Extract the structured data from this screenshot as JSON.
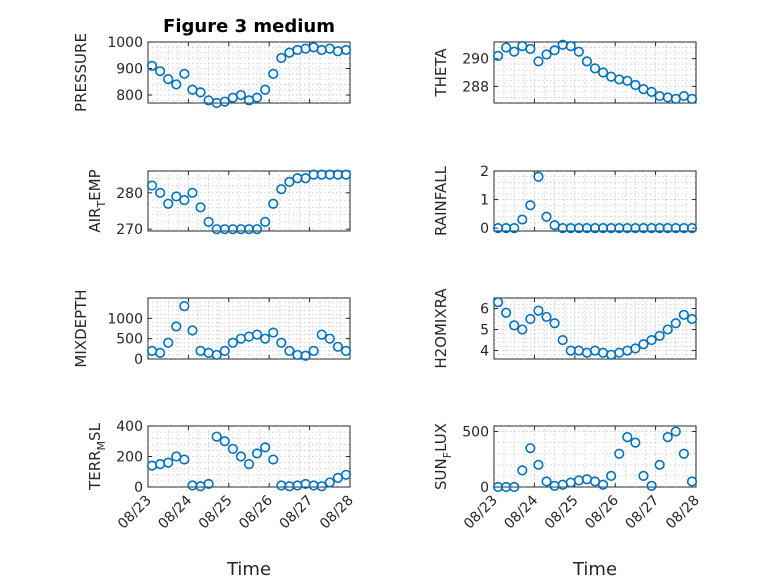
{
  "figure_title": "Figure 3 medium",
  "marker_color": "#0072BD",
  "x_label": "Time",
  "x_tick_labels": [
    "08/23",
    "08/24",
    "08/25",
    "08/26",
    "08/27",
    "08/28"
  ],
  "chart_data": [
    {
      "type": "scatter",
      "id": "pressure",
      "ylabel": "PRESSURE",
      "ylim": [
        770,
        1000
      ],
      "yticks": [
        800,
        900,
        1000
      ],
      "grid": true,
      "x_unit": "days since 08/23",
      "xlim": [
        0,
        5
      ],
      "x": [
        0.1,
        0.3,
        0.5,
        0.7,
        0.9,
        1.1,
        1.3,
        1.5,
        1.7,
        1.9,
        2.1,
        2.3,
        2.5,
        2.7,
        2.9,
        3.1,
        3.3,
        3.5,
        3.7,
        3.9,
        4.1,
        4.3,
        4.5,
        4.7,
        4.9
      ],
      "y": [
        910,
        890,
        860,
        840,
        880,
        820,
        810,
        780,
        770,
        775,
        790,
        800,
        780,
        790,
        820,
        880,
        940,
        960,
        970,
        975,
        980,
        970,
        975,
        965,
        970
      ]
    },
    {
      "type": "scatter",
      "id": "theta",
      "ylabel": "THETA",
      "ylim": [
        286.8,
        291.2
      ],
      "yticks": [
        288,
        290
      ],
      "grid": true,
      "x_unit": "days since 08/23",
      "xlim": [
        0,
        5
      ],
      "x": [
        0.1,
        0.3,
        0.5,
        0.7,
        0.9,
        1.1,
        1.3,
        1.5,
        1.7,
        1.9,
        2.1,
        2.3,
        2.5,
        2.7,
        2.9,
        3.1,
        3.3,
        3.5,
        3.7,
        3.9,
        4.1,
        4.3,
        4.5,
        4.7,
        4.9
      ],
      "y": [
        290.2,
        290.8,
        290.5,
        290.9,
        290.7,
        289.8,
        290.3,
        290.6,
        291.0,
        290.9,
        290.5,
        289.8,
        289.3,
        289.0,
        288.7,
        288.5,
        288.4,
        288.1,
        287.8,
        287.6,
        287.3,
        287.2,
        287.1,
        287.3,
        287.1
      ]
    },
    {
      "type": "scatter",
      "id": "air_temp",
      "ylabel": "AIR_TEMP",
      "ylim": [
        269.5,
        286
      ],
      "yticks": [
        270,
        280
      ],
      "grid": true,
      "x_unit": "days since 08/23",
      "xlim": [
        0,
        5
      ],
      "x": [
        0.1,
        0.3,
        0.5,
        0.7,
        0.9,
        1.1,
        1.3,
        1.5,
        1.7,
        1.9,
        2.1,
        2.3,
        2.5,
        2.7,
        2.9,
        3.1,
        3.3,
        3.5,
        3.7,
        3.9,
        4.1,
        4.3,
        4.5,
        4.7,
        4.9
      ],
      "y": [
        282,
        280,
        277,
        279,
        278,
        280,
        276,
        272,
        270,
        270,
        270,
        270,
        270,
        270,
        272,
        277,
        281,
        283,
        284,
        284,
        285,
        285,
        285,
        285,
        285
      ]
    },
    {
      "type": "scatter",
      "id": "rainfall",
      "ylabel": "RAINFALL",
      "ylim": [
        -0.1,
        2
      ],
      "yticks": [
        0,
        1,
        2
      ],
      "grid": true,
      "x_unit": "days since 08/23",
      "xlim": [
        0,
        5
      ],
      "x": [
        0.1,
        0.3,
        0.5,
        0.7,
        0.9,
        1.1,
        1.3,
        1.5,
        1.7,
        1.9,
        2.1,
        2.3,
        2.5,
        2.7,
        2.9,
        3.1,
        3.3,
        3.5,
        3.7,
        3.9,
        4.1,
        4.3,
        4.5,
        4.7,
        4.9
      ],
      "y": [
        0,
        0,
        0,
        0.3,
        0.8,
        1.8,
        0.4,
        0.1,
        0,
        0,
        0,
        0,
        0,
        0,
        0,
        0,
        0,
        0,
        0,
        0,
        0,
        0,
        0,
        0,
        0
      ]
    },
    {
      "type": "scatter",
      "id": "mixdepth",
      "ylabel": "MIXDEPTH",
      "ylim": [
        0,
        1500
      ],
      "yticks": [
        0,
        500,
        1000
      ],
      "grid": true,
      "x_unit": "days since 08/23",
      "xlim": [
        0,
        5
      ],
      "x": [
        0.1,
        0.3,
        0.5,
        0.7,
        0.9,
        1.1,
        1.3,
        1.5,
        1.7,
        1.9,
        2.1,
        2.3,
        2.5,
        2.7,
        2.9,
        3.1,
        3.3,
        3.5,
        3.7,
        3.9,
        4.1,
        4.3,
        4.5,
        4.7,
        4.9
      ],
      "y": [
        200,
        150,
        400,
        800,
        1300,
        700,
        200,
        150,
        100,
        200,
        400,
        500,
        550,
        600,
        500,
        650,
        400,
        200,
        100,
        80,
        200,
        600,
        500,
        300,
        200
      ]
    },
    {
      "type": "scatter",
      "id": "h2omixra",
      "ylabel": "H2OMIXRA",
      "ylim": [
        3.6,
        6.5
      ],
      "yticks": [
        4,
        5,
        6
      ],
      "grid": true,
      "x_unit": "days since 08/23",
      "xlim": [
        0,
        5
      ],
      "x": [
        0.1,
        0.3,
        0.5,
        0.7,
        0.9,
        1.1,
        1.3,
        1.5,
        1.7,
        1.9,
        2.1,
        2.3,
        2.5,
        2.7,
        2.9,
        3.1,
        3.3,
        3.5,
        3.7,
        3.9,
        4.1,
        4.3,
        4.5,
        4.7,
        4.9
      ],
      "y": [
        6.3,
        5.8,
        5.2,
        5.0,
        5.5,
        5.9,
        5.6,
        5.3,
        4.5,
        4.0,
        4.0,
        3.9,
        4.0,
        3.9,
        3.8,
        3.9,
        4.0,
        4.1,
        4.3,
        4.5,
        4.7,
        5.0,
        5.3,
        5.7,
        5.5
      ]
    },
    {
      "type": "scatter",
      "id": "terr_msl",
      "ylabel": "TERR_MSL",
      "ylim": [
        0,
        400
      ],
      "yticks": [
        0,
        200,
        400
      ],
      "grid": true,
      "x_unit": "days since 08/23",
      "xlim": [
        0,
        5
      ],
      "x": [
        0.1,
        0.3,
        0.5,
        0.7,
        0.9,
        1.1,
        1.3,
        1.5,
        1.7,
        1.9,
        2.1,
        2.3,
        2.5,
        2.7,
        2.9,
        3.1,
        3.3,
        3.5,
        3.7,
        3.9,
        4.1,
        4.3,
        4.5,
        4.7,
        4.9
      ],
      "y": [
        140,
        150,
        160,
        200,
        180,
        10,
        5,
        20,
        330,
        300,
        250,
        200,
        150,
        220,
        260,
        180,
        10,
        5,
        10,
        20,
        10,
        5,
        30,
        60,
        80
      ]
    },
    {
      "type": "scatter",
      "id": "sun_flux",
      "ylabel": "SUN_FLUX",
      "ylim": [
        0,
        550
      ],
      "yticks": [
        0,
        500
      ],
      "grid": true,
      "x_unit": "days since 08/23",
      "xlim": [
        0,
        5
      ],
      "x": [
        0.1,
        0.3,
        0.5,
        0.7,
        0.9,
        1.1,
        1.3,
        1.5,
        1.7,
        1.9,
        2.1,
        2.3,
        2.5,
        2.7,
        2.9,
        3.1,
        3.3,
        3.5,
        3.7,
        3.9,
        4.1,
        4.3,
        4.5,
        4.7,
        4.9
      ],
      "y": [
        0,
        0,
        0,
        150,
        350,
        200,
        50,
        10,
        20,
        40,
        60,
        70,
        50,
        20,
        100,
        300,
        450,
        400,
        100,
        10,
        200,
        450,
        500,
        300,
        50
      ]
    }
  ]
}
